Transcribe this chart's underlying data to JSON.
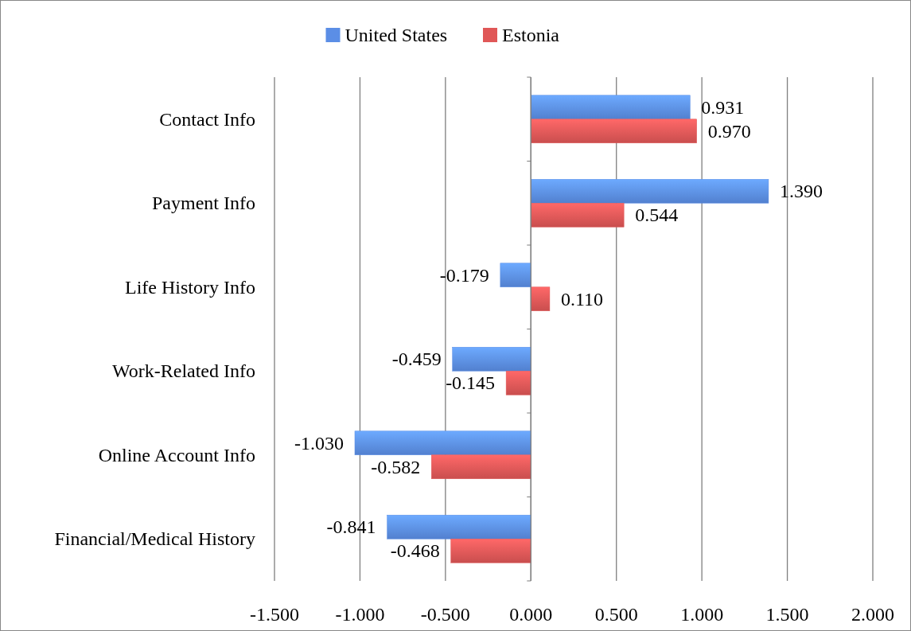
{
  "chart_data": {
    "type": "bar",
    "orientation": "horizontal",
    "categories": [
      "Contact Info",
      "Payment Info",
      "Life History Info",
      "Work-Related Info",
      "Online Account Info",
      "Financial/Medical History"
    ],
    "series": [
      {
        "name": "United States",
        "color": "#5b8ee6",
        "values": [
          0.931,
          1.39,
          -0.179,
          -0.459,
          -1.03,
          -0.841
        ],
        "value_labels": [
          "0.931",
          "1.390",
          "-0.179",
          "-0.459",
          "-1.030",
          "-0.841"
        ]
      },
      {
        "name": "Estonia",
        "color": "#e05757",
        "values": [
          0.97,
          0.544,
          0.11,
          -0.145,
          -0.582,
          -0.468
        ],
        "value_labels": [
          "0.970",
          "0.544",
          "0.110",
          "-0.145",
          "-0.582",
          "-0.468"
        ]
      }
    ],
    "xlim": [
      -1.5,
      2
    ],
    "xticks": [
      {
        "value": -1.5,
        "label": "-1.500"
      },
      {
        "value": -1,
        "label": "-1.000"
      },
      {
        "value": -0.5,
        "label": "-0.500"
      },
      {
        "value": 0,
        "label": "0.000"
      },
      {
        "value": 0.5,
        "label": "0.500"
      },
      {
        "value": 1,
        "label": "1.000"
      },
      {
        "value": 1.5,
        "label": "1.500"
      },
      {
        "value": 2,
        "label": "2.000"
      }
    ],
    "grid": "x",
    "legend": "top"
  }
}
